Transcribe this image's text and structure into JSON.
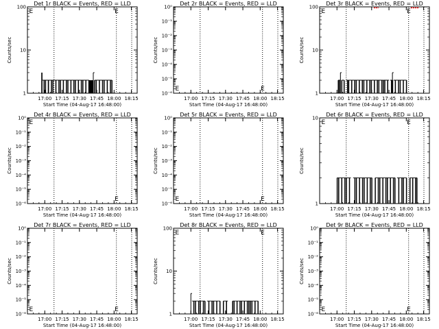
{
  "figure": {
    "time_range": [
      "16:45",
      "18:20"
    ],
    "xticks": [
      "17:00",
      "17:15",
      "17:30",
      "17:45",
      "18:00",
      "18:15"
    ],
    "event_lines": [
      "17:08",
      "18:02"
    ],
    "marker_text": "E",
    "colors": {
      "events": "#000000",
      "lld": "#ff0000",
      "axes": "#000000"
    }
  },
  "chart_data": [
    {
      "type": "line",
      "title": "Det 1r BLACK = Events, RED = LLD",
      "xlabel": "Start Time (04-Aug-17 16:48:00)",
      "ylabel": "Counts/sec",
      "yscale": "log",
      "ylim": [
        1,
        100
      ],
      "yticks": [
        "1",
        "10",
        "100"
      ],
      "event_marks": [
        {
          "time": "16:47",
          "level": "top"
        },
        {
          "time": "18:01",
          "level": "top"
        }
      ],
      "segments": [
        {
          "start": "16:57",
          "end": "16:58",
          "pattern": "block",
          "value": 3
        },
        {
          "start": "16:58",
          "end": "17:03",
          "pattern": "flicker",
          "value": 2
        },
        {
          "start": "17:03",
          "end": "17:38",
          "pattern": "flicker",
          "value": 2
        },
        {
          "start": "17:38",
          "end": "17:42",
          "pattern": "block",
          "value": 2
        },
        {
          "start": "17:42",
          "end": "17:43",
          "pattern": "spike",
          "value": 3
        },
        {
          "start": "17:43",
          "end": "17:58",
          "pattern": "flicker",
          "value": 2
        }
      ]
    },
    {
      "type": "line",
      "title": "Det 2r BLACK = Events, RED = LLD",
      "xlabel": "Start Time (04-Aug-17 16:48:00)",
      "ylabel": "Counts/sec",
      "yscale": "log",
      "ylim": [
        1e-06,
        1
      ],
      "yticks": [
        "10⁰",
        "10⁻¹",
        "10⁻²",
        "10⁻³",
        "10⁻⁴",
        "10⁻⁵",
        "10⁻⁶"
      ],
      "event_marks": [
        {
          "time": "16:47",
          "level": "bottom"
        },
        {
          "time": "18:01",
          "level": "bottom"
        }
      ],
      "segments": []
    },
    {
      "type": "line",
      "title": "Det 3r BLACK = Events, RED = LLD",
      "xlabel": "Start Time (04-Aug-17 16:48:00)",
      "ylabel": "Counts/sec",
      "yscale": "log",
      "ylim": [
        1,
        100
      ],
      "yticks": [
        "1",
        "10",
        "100"
      ],
      "event_marks": [
        {
          "time": "16:47",
          "level": "top"
        },
        {
          "time": "18:01",
          "level": "top"
        }
      ],
      "lld_segments": [
        {
          "start": "17:32",
          "end": "17:36",
          "value": 95
        },
        {
          "start": "18:04",
          "end": "18:11",
          "value": 95
        }
      ],
      "segments": [
        {
          "start": "17:01",
          "end": "17:03",
          "pattern": "flicker",
          "value": 2
        },
        {
          "start": "17:03",
          "end": "17:04",
          "pattern": "spike",
          "value": 3
        },
        {
          "start": "17:04",
          "end": "17:06",
          "pattern": "flicker",
          "value": 2
        },
        {
          "start": "17:08",
          "end": "17:10",
          "pattern": "flicker",
          "value": 2
        },
        {
          "start": "17:10",
          "end": "17:40",
          "pattern": "flicker",
          "value": 2
        },
        {
          "start": "17:40",
          "end": "17:45",
          "pattern": "flicker",
          "value": 2
        },
        {
          "start": "17:46",
          "end": "17:48",
          "pattern": "flicker",
          "value": 2
        },
        {
          "start": "17:48",
          "end": "17:49",
          "pattern": "spike",
          "value": 3
        },
        {
          "start": "17:49",
          "end": "18:00",
          "pattern": "flicker",
          "value": 2
        }
      ]
    },
    {
      "type": "line",
      "title": "Det 4r BLACK = Events, RED = LLD",
      "xlabel": "Start Time (04-Aug-17 16:48:00)",
      "ylabel": "Counts/sec",
      "yscale": "log",
      "ylim": [
        1e-06,
        1
      ],
      "yticks": [
        "10⁰",
        "10⁻¹",
        "10⁻²",
        "10⁻³",
        "10⁻⁴",
        "10⁻⁵",
        "10⁻⁶"
      ],
      "event_marks": [
        {
          "time": "16:47",
          "level": "top"
        },
        {
          "time": "18:01",
          "level": "bottom"
        }
      ],
      "segments": []
    },
    {
      "type": "line",
      "title": "Det 5r BLACK = Events, RED = LLD",
      "xlabel": "Start Time (04-Aug-17 16:48:00)",
      "ylabel": "Counts/sec",
      "yscale": "log",
      "ylim": [
        1e-06,
        1
      ],
      "yticks": [
        "10⁰",
        "10⁻¹",
        "10⁻²",
        "10⁻³",
        "10⁻⁴",
        "10⁻⁵",
        "10⁻⁶"
      ],
      "event_marks": [
        {
          "time": "16:47",
          "level": "bottom"
        },
        {
          "time": "18:01",
          "level": "bottom"
        }
      ],
      "segments": []
    },
    {
      "type": "line",
      "title": "Det 6r BLACK = Events, RED = LLD",
      "xlabel": "Start Time (04-Aug-17 16:48:00)",
      "ylabel": "Counts/sec",
      "yscale": "log",
      "ylim": [
        1,
        10
      ],
      "yticks": [
        "1",
        "10"
      ],
      "event_marks": [
        {
          "time": "16:47",
          "level": "top"
        },
        {
          "time": "18:01",
          "level": "top"
        }
      ],
      "segments": [
        {
          "start": "17:00",
          "end": "17:12",
          "pattern": "flicker",
          "value": 2
        },
        {
          "start": "17:14",
          "end": "17:30",
          "pattern": "flicker",
          "value": 2
        },
        {
          "start": "17:33",
          "end": "17:50",
          "pattern": "flicker",
          "value": 2
        },
        {
          "start": "17:52",
          "end": "18:00",
          "pattern": "flicker",
          "value": 2
        },
        {
          "start": "18:03",
          "end": "18:09",
          "pattern": "flicker",
          "value": 2
        }
      ]
    },
    {
      "type": "line",
      "title": "Det 7r BLACK = Events, RED = LLD",
      "xlabel": "Start Time (04-Aug-17 16:48:00)",
      "ylabel": "Counts/sec",
      "yscale": "log",
      "ylim": [
        1e-06,
        1
      ],
      "yticks": [
        "10⁰",
        "10⁻¹",
        "10⁻²",
        "10⁻³",
        "10⁻⁴",
        "10⁻⁵",
        "10⁻⁶"
      ],
      "event_marks": [
        {
          "time": "16:47",
          "level": "bottom"
        },
        {
          "time": "18:01",
          "level": "bottom"
        }
      ],
      "segments": []
    },
    {
      "type": "line",
      "title": "Det 8r BLACK = Events, RED = LLD",
      "xlabel": "Start Time (04-Aug-17 16:48:00)",
      "ylabel": "Counts/sec",
      "yscale": "log",
      "ylim": [
        1,
        100
      ],
      "yticks": [
        "1",
        "10",
        "100"
      ],
      "event_marks": [
        {
          "time": "16:47",
          "level": "top"
        },
        {
          "time": "18:01",
          "level": "top"
        }
      ],
      "segments": [
        {
          "start": "17:00",
          "end": "17:01",
          "pattern": "spike",
          "value": 3
        },
        {
          "start": "17:01",
          "end": "17:08",
          "pattern": "flicker",
          "value": 2
        },
        {
          "start": "17:08",
          "end": "17:12",
          "pattern": "flicker",
          "value": 2
        },
        {
          "start": "17:14",
          "end": "17:25",
          "pattern": "flicker",
          "value": 2
        },
        {
          "start": "17:28",
          "end": "17:32",
          "pattern": "flicker",
          "value": 2
        },
        {
          "start": "17:36",
          "end": "17:50",
          "pattern": "flicker",
          "value": 2
        },
        {
          "start": "17:50",
          "end": "17:58",
          "pattern": "flicker",
          "value": 2
        }
      ]
    },
    {
      "type": "line",
      "title": "Det 9r BLACK = Events, RED = LLD",
      "xlabel": "Start Time (04-Aug-17 16:48:00)",
      "ylabel": "Counts/sec",
      "yscale": "log",
      "ylim": [
        1e-06,
        1
      ],
      "yticks": [
        "10⁰",
        "10⁻¹",
        "10⁻²",
        "10⁻³",
        "10⁻⁴",
        "10⁻⁵",
        "10⁻⁶"
      ],
      "event_marks": [
        {
          "time": "16:47",
          "level": "bottom"
        },
        {
          "time": "18:01",
          "level": "bottom"
        }
      ],
      "segments": []
    }
  ]
}
